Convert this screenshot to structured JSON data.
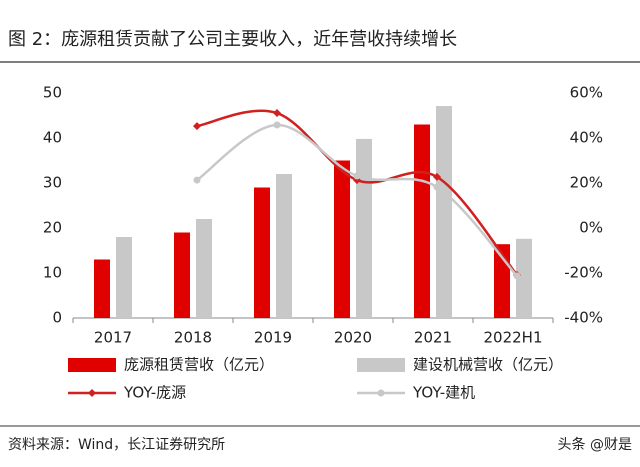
{
  "chart_data": {
    "type": "bar_line",
    "title": "图 2：庞源租赁贡献了公司主要收入，近年营收持续增长",
    "source": "资料来源：Wind，长江证券研究所",
    "watermark": "头条 @财是",
    "categories": [
      "2017",
      "2018",
      "2019",
      "2020",
      "2021",
      "2022H1"
    ],
    "series": [
      {
        "name": "庞源租赁营收（亿元）",
        "color": "#e00000",
        "kind": "bar",
        "values": [
          13,
          19,
          29,
          35,
          43,
          16.4
        ]
      },
      {
        "name": "建设机械营收（亿元）",
        "color": "#c8c8c8",
        "kind": "bar",
        "values": [
          18,
          22,
          32,
          39.8,
          47.1,
          17.6
        ]
      },
      {
        "name": "YOY-庞源",
        "color": "#d0201f",
        "kind": "line",
        "marker": "diamond",
        "axis": "y2",
        "values": [
          null,
          45.3,
          51.1,
          21.3,
          22.7,
          -20.9
        ]
      },
      {
        "name": "YOY-建机",
        "color": "#c8c8c8",
        "kind": "line",
        "marker": "circle",
        "axis": "y2",
        "values": [
          null,
          21.3,
          45.8,
          23.1,
          18.2,
          -21.3
        ]
      }
    ],
    "ylim": [
      0,
      50
    ],
    "yticks": [
      0,
      10,
      20,
      30,
      40,
      50
    ],
    "y2lim": [
      -40,
      60
    ],
    "y2ticks": [
      {
        "value": -40,
        "label": "-40%"
      },
      {
        "value": -20,
        "label": "-20%"
      },
      {
        "value": 0,
        "label": "0%"
      },
      {
        "value": 20,
        "label": "20%"
      },
      {
        "value": 40,
        "label": "40%"
      },
      {
        "value": 60,
        "label": "60%"
      }
    ],
    "grid": false
  }
}
